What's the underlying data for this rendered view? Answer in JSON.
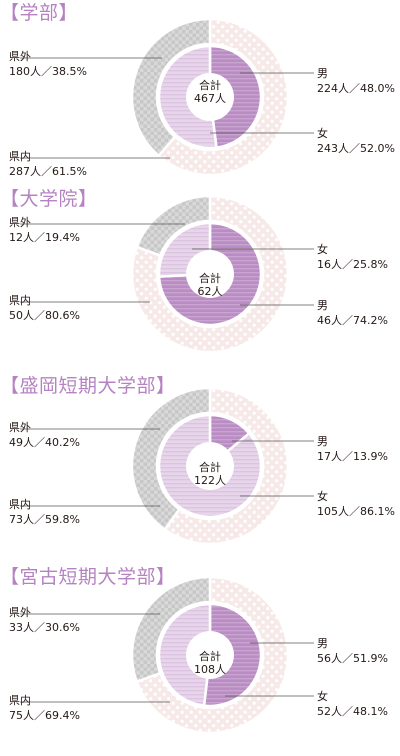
{
  "chart_data": [
    {
      "type": "pie",
      "title": "【学部】",
      "total_label": "合計",
      "total": "467人",
      "outer_series": [
        {
          "name": "県外",
          "value": 180,
          "percent": 38.5,
          "label": "180人／38.5%",
          "pattern": "gray"
        },
        {
          "name": "県内",
          "value": 287,
          "percent": 61.5,
          "label": "287人／61.5%",
          "pattern": "pink"
        }
      ],
      "inner_series": [
        {
          "name": "男",
          "value": 224,
          "percent": 48.0,
          "label": "224人／48.0%",
          "pattern": "purple"
        },
        {
          "name": "女",
          "value": 243,
          "percent": 52.0,
          "label": "243人／52.0%",
          "pattern": "lilac"
        }
      ]
    },
    {
      "type": "pie",
      "title": "【大学院】",
      "total_label": "合計",
      "total": "62人",
      "outer_series": [
        {
          "name": "県外",
          "value": 12,
          "percent": 19.4,
          "label": "12人／19.4%",
          "pattern": "gray"
        },
        {
          "name": "県内",
          "value": 50,
          "percent": 80.6,
          "label": "50人／80.6%",
          "pattern": "pink"
        }
      ],
      "inner_series": [
        {
          "name": "男",
          "value": 46,
          "percent": 74.2,
          "label": "46人／74.2%",
          "pattern": "purple"
        },
        {
          "name": "女",
          "value": 16,
          "percent": 25.8,
          "label": "16人／25.8%",
          "pattern": "lilac"
        }
      ]
    },
    {
      "type": "pie",
      "title": "【盛岡短期大学部】",
      "total_label": "合計",
      "total": "122人",
      "outer_series": [
        {
          "name": "県外",
          "value": 49,
          "percent": 40.2,
          "label": "49人／40.2%",
          "pattern": "gray"
        },
        {
          "name": "県内",
          "value": 73,
          "percent": 59.8,
          "label": "73人／59.8%",
          "pattern": "pink"
        }
      ],
      "inner_series": [
        {
          "name": "男",
          "value": 17,
          "percent": 13.9,
          "label": "17人／13.9%",
          "pattern": "purple"
        },
        {
          "name": "女",
          "value": 105,
          "percent": 86.1,
          "label": "105人／86.1%",
          "pattern": "lilac"
        }
      ]
    },
    {
      "type": "pie",
      "title": "【宮古短期大学部】",
      "total_label": "合計",
      "total": "108人",
      "outer_series": [
        {
          "name": "県外",
          "value": 33,
          "percent": 30.6,
          "label": "33人／30.6%",
          "pattern": "gray"
        },
        {
          "name": "県内",
          "value": 75,
          "percent": 69.4,
          "label": "75人／69.4%",
          "pattern": "pink"
        }
      ],
      "inner_series": [
        {
          "name": "男",
          "value": 56,
          "percent": 51.9,
          "label": "56人／51.9%",
          "pattern": "purple"
        },
        {
          "name": "女",
          "value": 52,
          "percent": 48.1,
          "label": "52人／48.1%",
          "pattern": "lilac"
        }
      ]
    }
  ],
  "colors": {
    "title": "#b583c2",
    "outer_gray_bg": "#d9d9d9",
    "outer_gray_dot": "#bdbdbd",
    "outer_pink_bg": "#f6e9e8",
    "outer_pink_dot": "#ffffff",
    "inner_purple": "#b98cc3",
    "inner_purple_stripe": "#c9a4d0",
    "inner_lilac": "#e7d5ea",
    "inner_lilac_stripe": "#d9c0df",
    "leader_line": "#595757",
    "center_fill": "#ffffff"
  }
}
